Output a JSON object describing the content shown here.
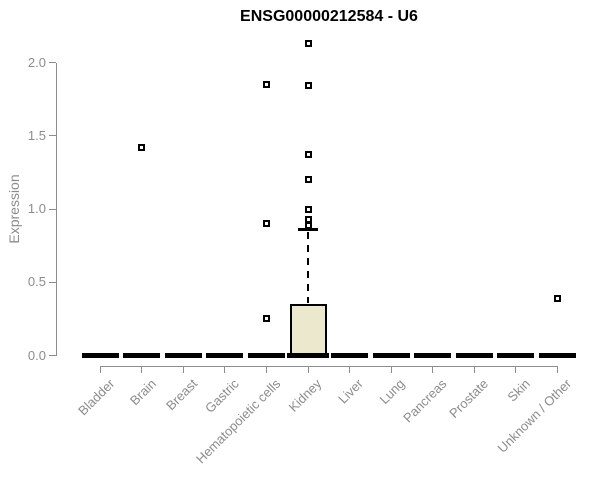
{
  "page": {
    "background": "#ffffff"
  },
  "chart_data": {
    "type": "boxplot",
    "title": "ENSG00000212584 - U6",
    "xlabel": "",
    "ylabel": "Expression",
    "ylim": [
      0,
      2.15
    ],
    "grid": false,
    "legend": null,
    "yticks": [
      {
        "value": 0.0,
        "label": "0.0"
      },
      {
        "value": 0.5,
        "label": "0.5"
      },
      {
        "value": 1.0,
        "label": "1.0"
      },
      {
        "value": 1.5,
        "label": "1.5"
      },
      {
        "value": 2.0,
        "label": "2.0"
      }
    ],
    "categories": [
      "Bladder",
      "Brain",
      "Breast",
      "Gastric",
      "Hematopoietic cells",
      "Kidney",
      "Liver",
      "Lung",
      "Pancreas",
      "Prostate",
      "Skin",
      "Unknown / Other"
    ],
    "boxes": [
      {
        "category": "Bladder",
        "whisker_low": 0,
        "q1": 0,
        "median": 0,
        "q3": 0,
        "whisker_high": 0,
        "outliers": []
      },
      {
        "category": "Brain",
        "whisker_low": 0,
        "q1": 0,
        "median": 0,
        "q3": 0,
        "whisker_high": 0,
        "outliers": [
          1.42
        ]
      },
      {
        "category": "Breast",
        "whisker_low": 0,
        "q1": 0,
        "median": 0,
        "q3": 0,
        "whisker_high": 0,
        "outliers": []
      },
      {
        "category": "Gastric",
        "whisker_low": 0,
        "q1": 0,
        "median": 0,
        "q3": 0,
        "whisker_high": 0,
        "outliers": []
      },
      {
        "category": "Hematopoietic cells",
        "whisker_low": 0,
        "q1": 0,
        "median": 0,
        "q3": 0,
        "whisker_high": 0,
        "outliers": [
          1.85,
          0.9,
          0.25
        ]
      },
      {
        "category": "Kidney",
        "whisker_low": 0,
        "q1": 0,
        "median": 0,
        "q3": 0.35,
        "whisker_high": 0.86,
        "outliers": [
          2.13,
          1.84,
          1.37,
          1.2,
          1.0,
          0.93,
          0.89
        ]
      },
      {
        "category": "Liver",
        "whisker_low": 0,
        "q1": 0,
        "median": 0,
        "q3": 0,
        "whisker_high": 0,
        "outliers": []
      },
      {
        "category": "Lung",
        "whisker_low": 0,
        "q1": 0,
        "median": 0,
        "q3": 0,
        "whisker_high": 0,
        "outliers": []
      },
      {
        "category": "Pancreas",
        "whisker_low": 0,
        "q1": 0,
        "median": 0,
        "q3": 0,
        "whisker_high": 0,
        "outliers": []
      },
      {
        "category": "Prostate",
        "whisker_low": 0,
        "q1": 0,
        "median": 0,
        "q3": 0,
        "whisker_high": 0,
        "outliers": []
      },
      {
        "category": "Skin",
        "whisker_low": 0,
        "q1": 0,
        "median": 0,
        "q3": 0,
        "whisker_high": 0,
        "outliers": []
      },
      {
        "category": "Unknown / Other",
        "whisker_low": 0,
        "q1": 0,
        "median": 0,
        "q3": 0,
        "whisker_high": 0,
        "outliers": [
          0.39
        ]
      }
    ],
    "colors": {
      "box_fill": "#ebe8cd",
      "box_border": "#000000",
      "median": "#000000",
      "whisker": "#000000",
      "outlier_border": "#000000",
      "outlier_fill": "#ffffff",
      "axis": "#8d8d8d",
      "tick_label": "#8c8c8c",
      "title": "#000000"
    }
  }
}
